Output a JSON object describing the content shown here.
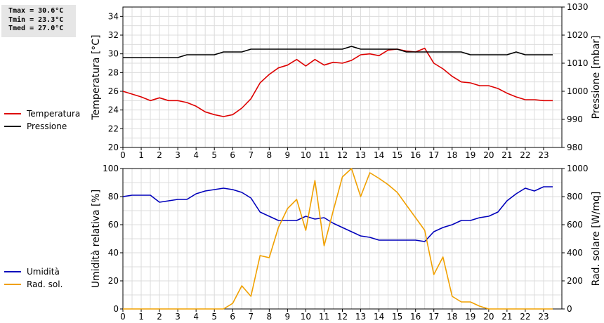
{
  "stats": {
    "tmax": "Tmax = 30.6°C",
    "tmin": "Tmin = 23.3°C",
    "tmed": "Tmed = 27.0°C"
  },
  "colors": {
    "temperatura": "#dd0000",
    "pressione": "#000000",
    "umidita": "#0000bb",
    "radiazione": "#f0a000",
    "grid": "#dcdcdc"
  },
  "chart_data": [
    {
      "type": "line",
      "x": [
        0,
        0.5,
        1,
        1.5,
        2,
        2.5,
        3,
        3.5,
        4,
        4.5,
        5,
        5.5,
        6,
        6.5,
        7,
        7.5,
        8,
        8.5,
        9,
        9.5,
        10,
        10.5,
        11,
        11.5,
        12,
        12.5,
        13,
        13.5,
        14,
        14.5,
        15,
        15.5,
        16,
        16.5,
        17,
        17.5,
        18,
        18.5,
        19,
        19.5,
        20,
        20.5,
        21,
        21.5,
        22,
        22.5,
        23,
        23.5
      ],
      "xlim": [
        0,
        24
      ],
      "xticks": [
        "0",
        "1",
        "2",
        "3",
        "4",
        "5",
        "6",
        "7",
        "8",
        "9",
        "10",
        "11",
        "12",
        "13",
        "14",
        "15",
        "16",
        "17",
        "18",
        "19",
        "20",
        "21",
        "22",
        "23"
      ],
      "ylabel": "Temperatura [°C]",
      "ylim": [
        20,
        35
      ],
      "yticks": [
        "20",
        "22",
        "24",
        "26",
        "28",
        "30",
        "32",
        "34"
      ],
      "y2label": "Pressione [mbar]",
      "y2lim": [
        980,
        1030
      ],
      "y2ticks": [
        "980",
        "990",
        "1000",
        "1010",
        "1020",
        "1030"
      ],
      "legend": [
        "Temperatura",
        "Pressione"
      ],
      "series": [
        {
          "name": "Temperatura",
          "axis": "left",
          "values": [
            26.0,
            25.7,
            25.4,
            25.0,
            25.3,
            25.0,
            25.0,
            24.8,
            24.4,
            23.8,
            23.5,
            23.3,
            23.5,
            24.2,
            25.2,
            26.9,
            27.8,
            28.5,
            28.8,
            29.4,
            28.7,
            29.4,
            28.8,
            29.1,
            29.0,
            29.3,
            29.9,
            30.0,
            29.8,
            30.4,
            30.5,
            30.3,
            30.2,
            30.6,
            29.0,
            28.4,
            27.6,
            27.0,
            26.9,
            26.6,
            26.6,
            26.3,
            25.8,
            25.4,
            25.1,
            25.1,
            25.0,
            25.0
          ]
        },
        {
          "name": "Pressione",
          "axis": "right",
          "values": [
            1012,
            1012,
            1012,
            1012,
            1012,
            1012,
            1012,
            1013,
            1013,
            1013,
            1013,
            1014,
            1014,
            1014,
            1015,
            1015,
            1015,
            1015,
            1015,
            1015,
            1015,
            1015,
            1015,
            1015,
            1015,
            1016,
            1015,
            1015,
            1015,
            1015,
            1015,
            1014,
            1014,
            1014,
            1014,
            1014,
            1014,
            1014,
            1013,
            1013,
            1013,
            1013,
            1013,
            1014,
            1013,
            1013,
            1013,
            1013
          ]
        }
      ]
    },
    {
      "type": "line",
      "x": [
        0,
        0.5,
        1,
        1.5,
        2,
        2.5,
        3,
        3.5,
        4,
        4.5,
        5,
        5.5,
        6,
        6.5,
        7,
        7.5,
        8,
        8.5,
        9,
        9.5,
        10,
        10.5,
        11,
        11.5,
        12,
        12.5,
        13,
        13.5,
        14,
        14.5,
        15,
        15.5,
        16,
        16.5,
        17,
        17.5,
        18,
        18.5,
        19,
        19.5,
        20,
        20.5,
        21,
        21.5,
        22,
        22.5,
        23,
        23.5
      ],
      "xlim": [
        0,
        24
      ],
      "xticks": [
        "0",
        "1",
        "2",
        "3",
        "4",
        "5",
        "6",
        "7",
        "8",
        "9",
        "10",
        "11",
        "12",
        "13",
        "14",
        "15",
        "16",
        "17",
        "18",
        "19",
        "20",
        "21",
        "22",
        "23"
      ],
      "ylabel": "Umidità relativa [%]",
      "ylim": [
        0,
        100
      ],
      "yticks": [
        "0",
        "20",
        "40",
        "60",
        "80",
        "100"
      ],
      "y2label": "Rad. solare [W/mq]",
      "y2lim": [
        0,
        1000
      ],
      "y2ticks": [
        "0",
        "200",
        "400",
        "600",
        "800",
        "1000"
      ],
      "legend": [
        "Umidità",
        "Rad. sol."
      ],
      "series": [
        {
          "name": "Umidità",
          "axis": "left",
          "values": [
            80,
            81,
            81,
            81,
            76,
            77,
            78,
            78,
            82,
            84,
            85,
            86,
            85,
            83,
            79,
            69,
            66,
            63,
            63,
            63,
            66,
            64,
            65,
            61,
            58,
            55,
            52,
            51,
            49,
            49,
            49,
            49,
            49,
            48,
            55,
            58,
            60,
            63,
            63,
            65,
            66,
            69,
            77,
            82,
            86,
            84,
            87,
            87
          ]
        },
        {
          "name": "Rad. sol.",
          "axis": "right",
          "values": [
            0,
            0,
            0,
            0,
            0,
            0,
            0,
            0,
            0,
            0,
            0,
            0,
            40,
            165,
            90,
            380,
            365,
            580,
            715,
            780,
            560,
            915,
            450,
            700,
            940,
            1010,
            800,
            970,
            930,
            885,
            830,
            740,
            650,
            560,
            245,
            370,
            90,
            50,
            50,
            20,
            0,
            0,
            0,
            0,
            0,
            0,
            0,
            0
          ]
        }
      ]
    }
  ]
}
